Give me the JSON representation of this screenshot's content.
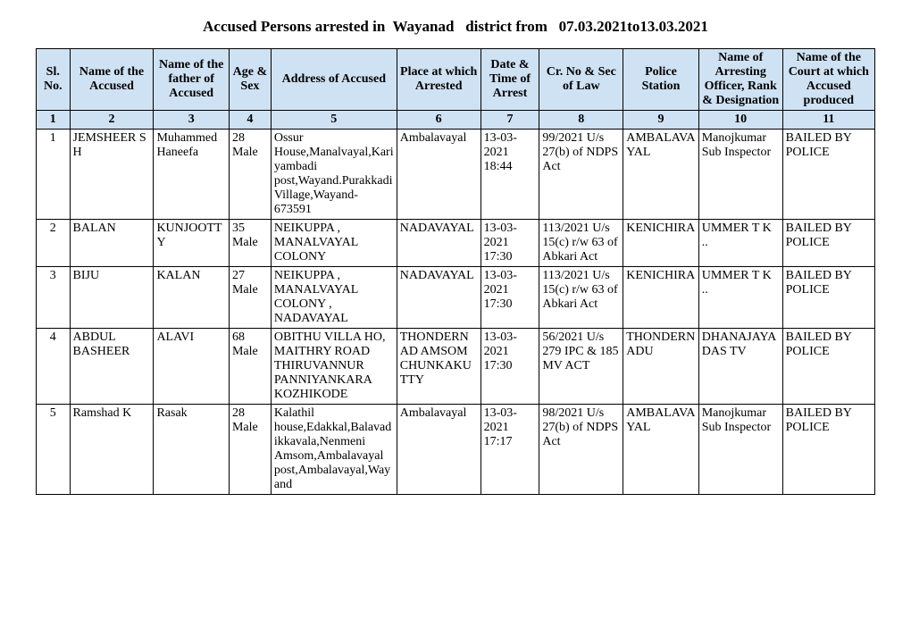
{
  "title": "Accused Persons arrested in  Wayanad   district from   07.03.2021to13.03.2021",
  "columns": {
    "widths_pct": [
      4,
      10,
      9,
      5,
      15,
      10,
      7,
      10,
      9,
      10,
      11
    ],
    "headers": [
      "Sl. No.",
      "Name of the Accused",
      "Name of the father of Accused",
      "Age & Sex",
      "Address of Accused",
      "Place at which Arrested",
      "Date & Time of Arrest",
      "Cr. No & Sec of Law",
      "Police Station",
      "Name of Arresting Officer, Rank & Designation",
      "Name of the Court at which Accused produced"
    ],
    "numbers": [
      "1",
      "2",
      "3",
      "4",
      "5",
      "6",
      "7",
      "8",
      "9",
      "10",
      "11"
    ]
  },
  "rows": [
    {
      "sl": "1",
      "name": "JEMSHEER S H",
      "father": "Muhammed Haneefa",
      "age_sex": "28 Male",
      "address": "Ossur House,Manalvayal,Kariyambadi post,Wayand.Purakkadi Village,Wayand-673591",
      "place": "Ambalavayal",
      "datetime": "13-03-2021 18:44",
      "crno": "99/2021 U/s 27(b) of NDPS Act",
      "station": "AMBALAVAYAL",
      "officer": "Manojkumar Sub Inspector",
      "court": "BAILED BY POLICE"
    },
    {
      "sl": "2",
      "name": "BALAN",
      "father": "KUNJOOTTY",
      "age_sex": "35 Male",
      "address": "NEIKUPPA , MANALVAYAL COLONY",
      "place": "NADAVAYAL",
      "datetime": "13-03-2021 17:30",
      "crno": "113/2021 U/s 15(c) r/w 63 of Abkari Act",
      "station": "KENICHIRA",
      "officer": "UMMER T K ..",
      "court": "BAILED BY POLICE"
    },
    {
      "sl": "3",
      "name": "BIJU",
      "father": "KALAN",
      "age_sex": "27 Male",
      "address": "NEIKUPPA , MANALVAYAL COLONY , NADAVAYAL",
      "place": "NADAVAYAL",
      "datetime": "13-03-2021 17:30",
      "crno": "113/2021 U/s 15(c) r/w 63 of Abkari Act",
      "station": "KENICHIRA",
      "officer": "UMMER T K ..",
      "court": "BAILED BY POLICE"
    },
    {
      "sl": "4",
      "name": "ABDUL BASHEER",
      "father": "ALAVI",
      "age_sex": "68 Male",
      "address": "OBITHU VILLA HO, MAITHRY ROAD THIRUVANNUR PANNIYANKARA KOZHIKODE",
      "place": "THONDERNAD AMSOM CHUNKAKUTTY",
      "datetime": "13-03-2021 17:30",
      "crno": "56/2021 U/s 279 IPC & 185 MV ACT",
      "station": "THONDERNADU",
      "officer": "DHANAJAYA DAS TV",
      "court": "BAILED BY POLICE"
    },
    {
      "sl": "5",
      "name": "Ramshad K",
      "father": "Rasak",
      "age_sex": "28 Male",
      "address": "Kalathil house,Edakkal,Balavadikkavala,Nenmeni Amsom,Ambalavayal post,Ambalavayal,Wayand",
      "place": "Ambalavayal",
      "datetime": "13-03-2021 17:17",
      "crno": "98/2021 U/s 27(b) of NDPS Act",
      "station": "AMBALAVAYAL",
      "officer": "Manojkumar Sub Inspector",
      "court": "BAILED BY POLICE"
    }
  ],
  "header_bg": "#cfe2f3",
  "border_color": "#000000"
}
